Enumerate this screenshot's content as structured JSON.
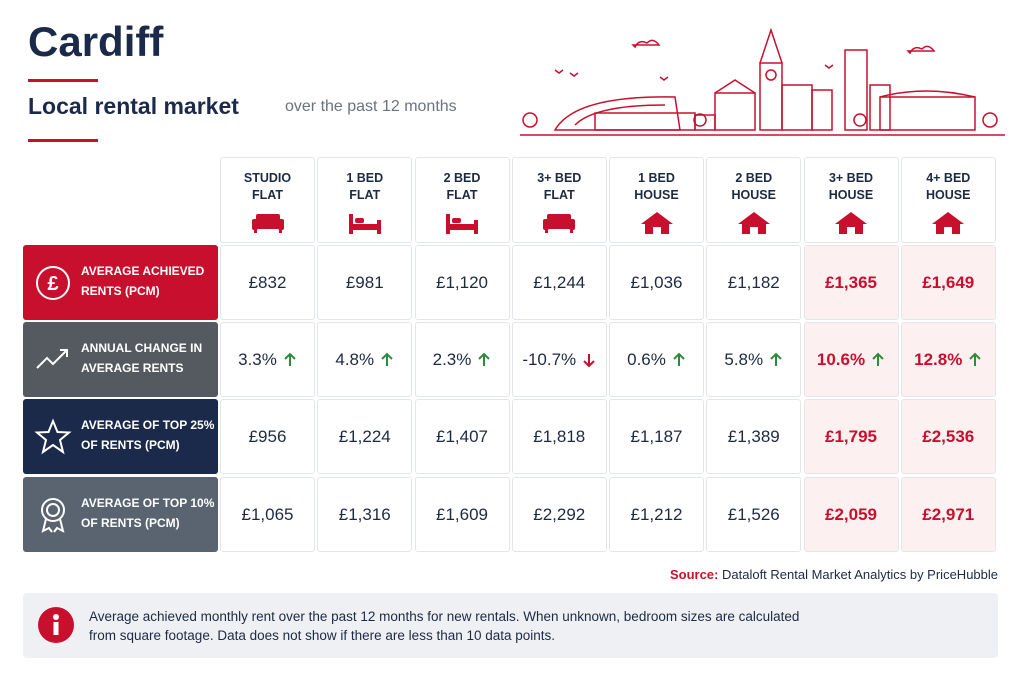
{
  "header": {
    "title": "Cardiff",
    "subtitle": "Local rental market",
    "period": "over the past 12 months"
  },
  "table": {
    "columns": [
      [
        "STUDIO",
        "FLAT"
      ],
      [
        "1 BED",
        "FLAT"
      ],
      [
        "2 BED",
        "FLAT"
      ],
      [
        "3+ BED",
        "FLAT"
      ],
      [
        "1 BED",
        "HOUSE"
      ],
      [
        "2 BED",
        "HOUSE"
      ],
      [
        "3+ BED",
        "HOUSE"
      ],
      [
        "4+ BED",
        "HOUSE"
      ]
    ],
    "rows": [
      {
        "label": [
          "AVERAGE ACHIEVED",
          "RENTS (PCM)"
        ],
        "values": [
          "£832",
          "£981",
          "£1,120",
          "£1,244",
          "£1,036",
          "£1,182",
          "£1,365",
          "£1,649"
        ]
      },
      {
        "label": [
          "ANNUAL CHANGE IN",
          "AVERAGE RENTS"
        ],
        "values": [
          "3.3%",
          "4.8%",
          "2.3%",
          "-10.7%",
          "0.6%",
          "5.8%",
          "10.6%",
          "12.8%"
        ]
      },
      {
        "label": [
          "AVERAGE OF TOP 25%",
          "OF RENTS (PCM)"
        ],
        "values": [
          "£956",
          "£1,224",
          "£1,407",
          "£1,818",
          "£1,187",
          "£1,389",
          "£1,795",
          "£2,536"
        ]
      },
      {
        "label": [
          "AVERAGE OF TOP 10%",
          "OF RENTS (PCM)"
        ],
        "values": [
          "£1,065",
          "£1,316",
          "£1,609",
          "£2,292",
          "£1,212",
          "£1,526",
          "£2,059",
          "£2,971"
        ]
      }
    ]
  },
  "source": {
    "label": "Source:",
    "text": "Dataloft Rental Market Analytics by PriceHubble"
  },
  "note": {
    "text": "Average achieved monthly rent over the past 12 months for new rentals. When unknown, bedroom sizes are calculated from square footage. Data does not show if there are less than 10 data points."
  }
}
